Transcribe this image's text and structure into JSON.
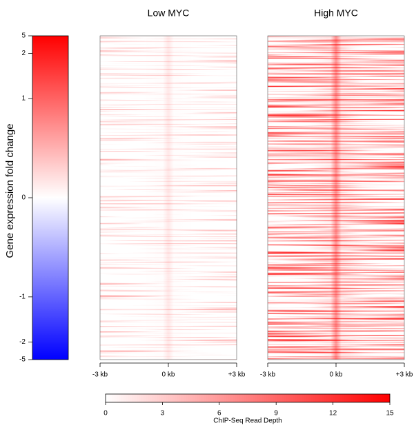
{
  "chart_data": {
    "type": "heatmap",
    "panels": [
      {
        "title": "Low MYC"
      },
      {
        "title": "High MYC"
      }
    ],
    "xlim": [
      -3,
      3
    ],
    "xticks": [
      {
        "value": -3,
        "label": "-3 kb"
      },
      {
        "value": 0,
        "label": "0 kb"
      },
      {
        "value": 3,
        "label": "+3 kb"
      }
    ],
    "row_colorbar": {
      "label": "Gene expression fold change",
      "ylim": [
        -5,
        5
      ],
      "yticks": [
        -5,
        -2,
        -1,
        0,
        1,
        2,
        5
      ],
      "colors": [
        "#0000ff",
        "#ffffff",
        "#ff0000"
      ]
    },
    "value_colorbar": {
      "label": "ChIP-Seq Read Depth",
      "xlim": [
        0,
        15
      ],
      "xticks": [
        0,
        3,
        6,
        9,
        12,
        15
      ],
      "colors": [
        "#ffffff",
        "#ff0000"
      ]
    }
  }
}
